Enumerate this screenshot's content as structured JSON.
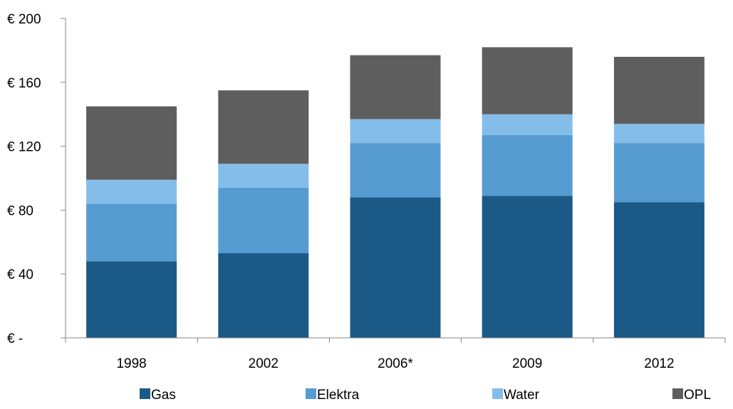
{
  "chart_data": {
    "type": "bar",
    "stacked": true,
    "categories": [
      "1998",
      "2002",
      "2006*",
      "2009",
      "2012"
    ],
    "series": [
      {
        "name": "Gas",
        "values": [
          48,
          53,
          88,
          89,
          85
        ],
        "color": "#1b5a87"
      },
      {
        "name": "Elektra",
        "values": [
          36,
          41,
          34,
          38,
          37
        ],
        "color": "#569cd1"
      },
      {
        "name": "Water",
        "values": [
          15,
          15,
          15,
          13,
          12
        ],
        "color": "#84bde9"
      },
      {
        "name": "OPL",
        "values": [
          46,
          46,
          40,
          42,
          42
        ],
        "color": "#5e5e5e"
      }
    ],
    "y_ticks": [
      "€ -",
      "€ 40",
      "€ 80",
      "€ 120",
      "€ 160",
      "€ 200"
    ],
    "ylim": [
      0,
      200
    ],
    "grid": false,
    "legend_position": "bottom",
    "title": "",
    "xlabel": "",
    "ylabel": ""
  }
}
